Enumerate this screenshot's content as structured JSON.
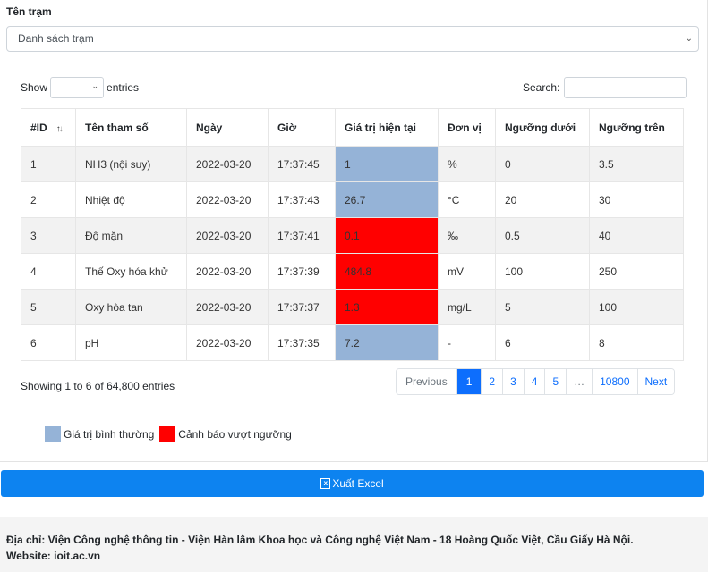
{
  "station": {
    "label": "Tên trạm",
    "selected": "Danh sách trạm"
  },
  "table_controls": {
    "show_label": "Show",
    "entries_label": "entries",
    "entries_value": "",
    "search_label": "Search:",
    "search_value": ""
  },
  "table": {
    "headers": [
      "#ID",
      "Tên tham số",
      "Ngày",
      "Giờ",
      "Giá trị hiện tại",
      "Đơn vị",
      "Ngưỡng dưới",
      "Ngưỡng trên"
    ],
    "rows": [
      {
        "id": "1",
        "name": "NH3 (nội suy)",
        "date": "2022-03-20",
        "time": "17:37:45",
        "value": "1",
        "unit": "%",
        "low": "0",
        "high": "3.5",
        "status": "normal"
      },
      {
        "id": "2",
        "name": "Nhiệt độ",
        "date": "2022-03-20",
        "time": "17:37:43",
        "value": "26.7",
        "unit": "°C",
        "low": "20",
        "high": "30",
        "status": "normal"
      },
      {
        "id": "3",
        "name": "Độ mặn",
        "date": "2022-03-20",
        "time": "17:37:41",
        "value": "0.1",
        "unit": "‰",
        "low": "0.5",
        "high": "40",
        "status": "alarm"
      },
      {
        "id": "4",
        "name": "Thế Oxy hóa khử",
        "date": "2022-03-20",
        "time": "17:37:39",
        "value": "484.8",
        "unit": "mV",
        "low": "100",
        "high": "250",
        "status": "alarm"
      },
      {
        "id": "5",
        "name": "Oxy hòa tan",
        "date": "2022-03-20",
        "time": "17:37:37",
        "value": "1.3",
        "unit": "mg/L",
        "low": "5",
        "high": "100",
        "status": "alarm"
      },
      {
        "id": "6",
        "name": "pH",
        "date": "2022-03-20",
        "time": "17:37:35",
        "value": "7.2",
        "unit": "-",
        "low": "6",
        "high": "8",
        "status": "normal"
      }
    ]
  },
  "info": "Showing 1 to 6 of 64,800 entries",
  "pagination": {
    "previous": "Previous",
    "pages": [
      "1",
      "2",
      "3",
      "4",
      "5",
      "…",
      "10800"
    ],
    "active": "1",
    "next": "Next"
  },
  "legend": {
    "normal_label": "Giá trị bình thường",
    "normal_color": "#95b3d7",
    "alarm_label": "Cảnh báo vượt ngưỡng",
    "alarm_color": "#ff0000"
  },
  "export": {
    "label": "Xuất Excel",
    "icon": "excel-icon",
    "color": "#0d83f0"
  },
  "footer": {
    "address": "Địa chỉ: Viện Công nghệ thông tin - Viện Hàn lâm Khoa học và Công nghệ Việt Nam - 18 Hoàng Quốc Việt, Cầu Giấy Hà Nội.",
    "website": "Website: ioit.ac.vn"
  }
}
